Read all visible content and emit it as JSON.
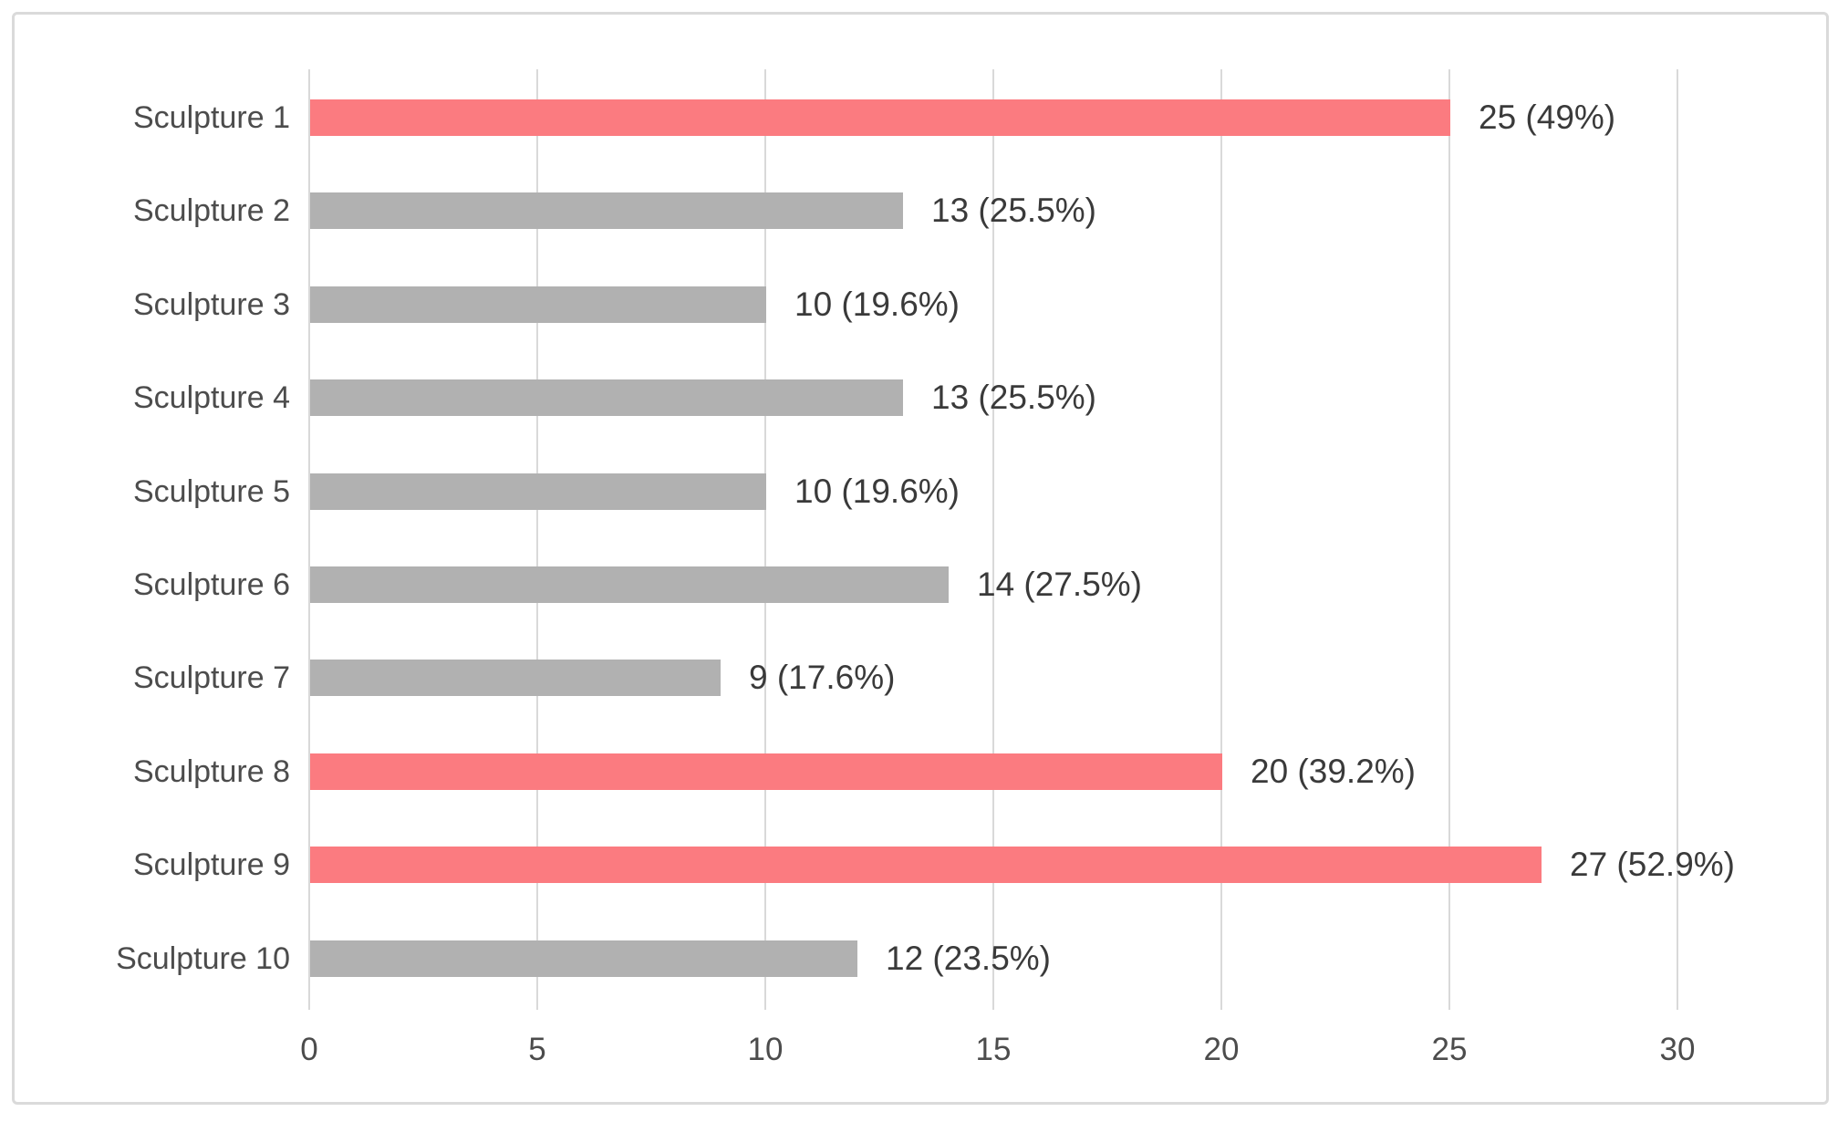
{
  "chart_data": {
    "type": "bar",
    "orientation": "horizontal",
    "title": "",
    "xlabel": "",
    "ylabel": "",
    "categories": [
      "Sculpture 1",
      "Sculpture 2",
      "Sculpture 3",
      "Sculpture 4",
      "Sculpture 5",
      "Sculpture 6",
      "Sculpture 7",
      "Sculpture 8",
      "Sculpture 9",
      "Sculpture 10"
    ],
    "values": [
      25,
      13,
      10,
      13,
      10,
      14,
      9,
      20,
      27,
      12
    ],
    "data_labels": [
      "25 (49%)",
      "13 (25.5%)",
      "10 (19.6%)",
      "13 (25.5%)",
      "10 (19.6%)",
      "14 (27.5%)",
      "9 (17.6%)",
      "20 (39.2%)",
      "27 (52.9%)",
      "12 (23.5%)"
    ],
    "highlighted": [
      true,
      false,
      false,
      false,
      false,
      false,
      false,
      true,
      true,
      false
    ],
    "x_ticks": [
      "0",
      "5",
      "10",
      "15",
      "20",
      "25",
      "30"
    ],
    "x_tick_values": [
      0,
      5,
      10,
      15,
      20,
      25,
      30
    ],
    "xlim": [
      0,
      33
    ],
    "grid": "vertical-gridlines-on",
    "legend": "none",
    "colors": {
      "bar_highlight": "#fb7b80",
      "bar_default": "#b1b1b1",
      "gridline": "#d9d9d9",
      "frame_border": "#dadada",
      "category_text": "#4c4c4c",
      "data_label_text": "#3a3a3a",
      "tick_text": "#4c4c4c"
    }
  }
}
